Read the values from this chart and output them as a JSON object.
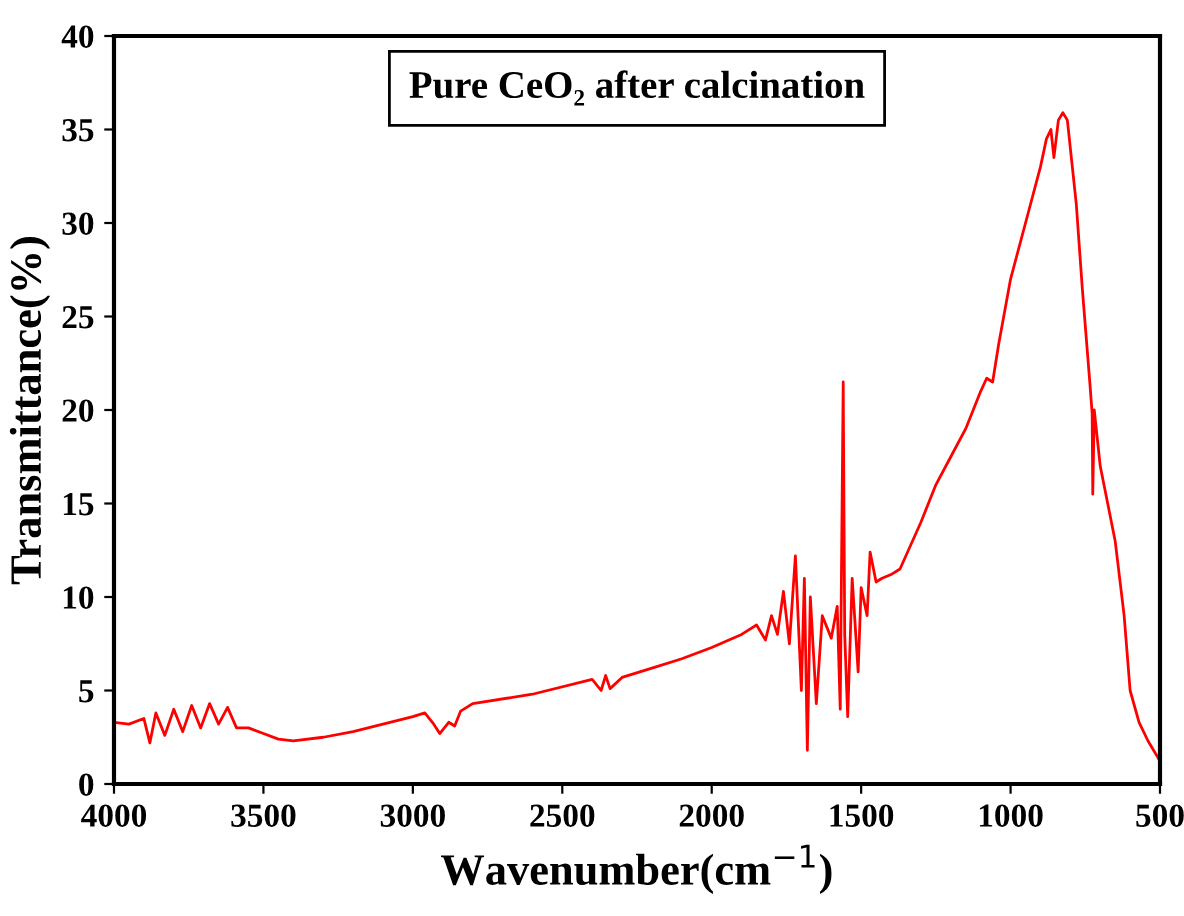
{
  "chart_data": {
    "type": "line",
    "title": "Pure CeO₂ after calcination",
    "xlabel": "Wavenumber(cm$^{−1}$)",
    "ylabel": "Transmittance(%)",
    "xlim": [
      4000,
      500
    ],
    "xticks": [
      4000,
      3500,
      3000,
      2500,
      2000,
      1500,
      1000,
      500
    ],
    "ylim": [
      0,
      40
    ],
    "yticks": [
      0,
      5,
      10,
      15,
      20,
      25,
      30,
      35,
      40
    ],
    "marker": "none",
    "line_style": "solid",
    "series": [
      {
        "color": "#ff0000",
        "x": [
          4000,
          3950,
          3900,
          3880,
          3860,
          3830,
          3800,
          3770,
          3740,
          3710,
          3680,
          3650,
          3620,
          3590,
          3550,
          3500,
          3450,
          3400,
          3300,
          3200,
          3100,
          3000,
          2960,
          2930,
          2910,
          2880,
          2860,
          2840,
          2800,
          2600,
          2400,
          2370,
          2355,
          2340,
          2300,
          2200,
          2100,
          2000,
          1900,
          1850,
          1820,
          1800,
          1780,
          1760,
          1740,
          1720,
          1700,
          1690,
          1680,
          1670,
          1650,
          1630,
          1600,
          1580,
          1570,
          1560,
          1555,
          1545,
          1530,
          1510,
          1500,
          1480,
          1470,
          1450,
          1430,
          1400,
          1370,
          1300,
          1250,
          1200,
          1150,
          1100,
          1080,
          1060,
          1040,
          1000,
          950,
          900,
          880,
          865,
          855,
          840,
          825,
          810,
          780,
          760,
          735,
          727,
          725,
          720,
          700,
          650,
          620,
          600,
          570,
          540,
          510,
          500
        ],
        "values": [
          3.3,
          3.2,
          3.5,
          2.2,
          3.8,
          2.6,
          4.0,
          2.8,
          4.2,
          3.0,
          4.3,
          3.2,
          4.1,
          3.0,
          3.0,
          2.7,
          2.4,
          2.3,
          2.5,
          2.8,
          3.2,
          3.6,
          3.8,
          3.2,
          2.7,
          3.3,
          3.1,
          3.9,
          4.3,
          4.8,
          5.6,
          5.0,
          5.8,
          5.1,
          5.7,
          6.2,
          6.7,
          7.3,
          8.0,
          8.5,
          7.7,
          9.0,
          8.0,
          10.3,
          7.5,
          12.2,
          5.0,
          11.0,
          1.8,
          10.0,
          4.3,
          9.0,
          7.8,
          9.5,
          4.0,
          21.5,
          8.0,
          3.6,
          11.0,
          6.0,
          10.5,
          9.0,
          12.4,
          10.8,
          11.0,
          11.2,
          11.5,
          14.0,
          16.0,
          17.5,
          19.0,
          21.0,
          21.7,
          21.5,
          23.5,
          27.0,
          30.0,
          33.0,
          34.5,
          35.0,
          33.5,
          35.5,
          35.9,
          35.5,
          31.0,
          26.5,
          21.5,
          19.8,
          15.5,
          20.0,
          17.0,
          13.0,
          9.0,
          5.0,
          3.3,
          2.3,
          1.5,
          1.2
        ]
      }
    ]
  }
}
